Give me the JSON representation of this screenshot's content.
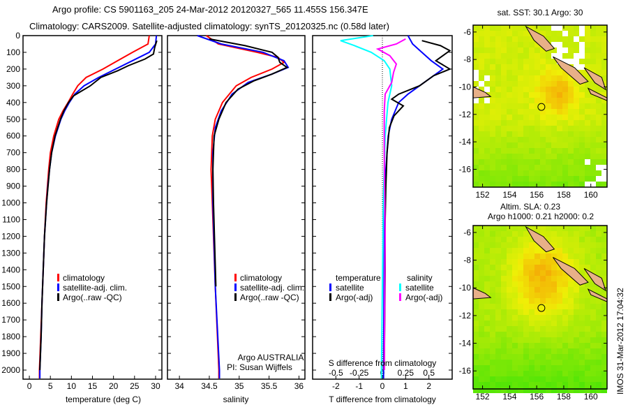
{
  "title_line1": "Argo profile: CS 5901163_205 24-Mar-2012 20120327_565 11.455S 156.347E",
  "title_line2": "Climatology: CARS2009. Satellite-adjusted climatology: synTS_20120325.nc (0.58d later)",
  "side_text": "IMOS 31-Mar-2012 17:04:32",
  "colors": {
    "climatology": "#ff0000",
    "satellite": "#0000ff",
    "argo": "#000000",
    "sal_satellite": "#00ffff",
    "sal_argo": "#ff00ff"
  },
  "chart_data": [
    {
      "type": "line",
      "name": "temperature",
      "xlabel": "temperature (deg C)",
      "xlim": [
        -1.5,
        31.5
      ],
      "ylim": [
        2050,
        0
      ],
      "xticks": [
        0,
        5,
        10,
        15,
        20,
        25,
        30
      ],
      "yticks": [
        0,
        100,
        200,
        300,
        400,
        500,
        600,
        700,
        800,
        900,
        1000,
        1100,
        1200,
        1300,
        1400,
        1500,
        1600,
        1700,
        1800,
        1900,
        2000
      ],
      "legend": [
        "climatology",
        "satellite-adj. clim.",
        "Argo(..raw -QC)"
      ],
      "series": [
        {
          "name": "climatology",
          "color": "#ff0000",
          "points": [
            [
              0,
              28.5
            ],
            [
              50,
              28.2
            ],
            [
              100,
              24.5
            ],
            [
              150,
              21
            ],
            [
              200,
              17.5
            ],
            [
              250,
              13.5
            ],
            [
              300,
              11.5
            ],
            [
              350,
              10.3
            ],
            [
              400,
              9.2
            ],
            [
              450,
              8
            ],
            [
              500,
              7
            ],
            [
              600,
              5.8
            ],
            [
              700,
              5
            ],
            [
              800,
              4.6
            ],
            [
              900,
              4.3
            ],
            [
              1000,
              4
            ],
            [
              1200,
              3.6
            ],
            [
              1400,
              3.3
            ],
            [
              1600,
              3
            ],
            [
              1800,
              2.7
            ],
            [
              2000,
              2.4
            ],
            [
              2050,
              2.4
            ]
          ]
        },
        {
          "name": "satellite",
          "color": "#0000ff",
          "points": [
            [
              0,
              30.2
            ],
            [
              50,
              30
            ],
            [
              100,
              28.5
            ],
            [
              150,
              24.5
            ],
            [
              200,
              20.5
            ],
            [
              250,
              16.5
            ],
            [
              300,
              13
            ],
            [
              350,
              10.8
            ],
            [
              400,
              9.5
            ],
            [
              450,
              8.4
            ],
            [
              500,
              7.5
            ],
            [
              600,
              6.2
            ],
            [
              700,
              5.3
            ],
            [
              800,
              4.8
            ],
            [
              900,
              4.4
            ],
            [
              1000,
              4.1
            ],
            [
              1200,
              3.6
            ],
            [
              1400,
              3.3
            ],
            [
              1600,
              3
            ],
            [
              1800,
              2.8
            ],
            [
              2000,
              2.5
            ],
            [
              2050,
              2.5
            ]
          ]
        },
        {
          "name": "argo",
          "color": "#000000",
          "points": [
            [
              30,
              30.3
            ],
            [
              70,
              29.8
            ],
            [
              110,
              29.5
            ],
            [
              140,
              27.5
            ],
            [
              180,
              23.5
            ],
            [
              210,
              21
            ],
            [
              250,
              17
            ],
            [
              300,
              14.5
            ],
            [
              330,
              12.5
            ],
            [
              360,
              10.5
            ],
            [
              400,
              9.3
            ],
            [
              450,
              8.2
            ],
            [
              500,
              7.4
            ],
            [
              600,
              6.1
            ],
            [
              700,
              5.3
            ],
            [
              800,
              4.8
            ],
            [
              1000,
              4.1
            ],
            [
              1200,
              3.6
            ],
            [
              1400,
              3.3
            ],
            [
              1600,
              3
            ],
            [
              1800,
              2.8
            ],
            [
              2000,
              2.5
            ]
          ]
        }
      ]
    },
    {
      "type": "line",
      "name": "salinity",
      "xlabel": "salinity",
      "xlim": [
        33.8,
        36.1
      ],
      "ylim": [
        2050,
        0
      ],
      "xticks": [
        34,
        34.5,
        35,
        35.5,
        36
      ],
      "legend": [
        "climatology",
        "satellite-adj. clim.",
        "Argo(..raw -QC)"
      ],
      "annotation": [
        "Argo AUSTRALIA",
        "PI: Susan Wijffels"
      ],
      "series": [
        {
          "name": "climatology",
          "color": "#ff0000",
          "points": [
            [
              0,
              34.45
            ],
            [
              50,
              34.65
            ],
            [
              100,
              35.3
            ],
            [
              130,
              35.65
            ],
            [
              160,
              35.75
            ],
            [
              200,
              35.55
            ],
            [
              250,
              35.2
            ],
            [
              300,
              34.95
            ],
            [
              400,
              34.72
            ],
            [
              500,
              34.6
            ],
            [
              600,
              34.55
            ],
            [
              800,
              34.53
            ],
            [
              1000,
              34.55
            ],
            [
              1500,
              34.6
            ],
            [
              2000,
              34.66
            ],
            [
              2050,
              34.66
            ]
          ]
        },
        {
          "name": "satellite",
          "color": "#0000ff",
          "points": [
            [
              0,
              34.3
            ],
            [
              50,
              34.7
            ],
            [
              100,
              35.4
            ],
            [
              150,
              35.75
            ],
            [
              190,
              35.82
            ],
            [
              230,
              35.55
            ],
            [
              280,
              35.15
            ],
            [
              350,
              34.88
            ],
            [
              450,
              34.7
            ],
            [
              550,
              34.6
            ],
            [
              700,
              34.56
            ],
            [
              1000,
              34.56
            ],
            [
              1500,
              34.6
            ],
            [
              2000,
              34.67
            ],
            [
              2050,
              34.67
            ]
          ]
        },
        {
          "name": "argo",
          "color": "#000000",
          "points": [
            [
              20,
              34.5
            ],
            [
              60,
              35.1
            ],
            [
              100,
              35.55
            ],
            [
              130,
              35.65
            ],
            [
              160,
              35.68
            ],
            [
              190,
              35.8
            ],
            [
              230,
              35.55
            ],
            [
              270,
              35.25
            ],
            [
              320,
              34.98
            ],
            [
              400,
              34.78
            ],
            [
              500,
              34.66
            ],
            [
              600,
              34.58
            ],
            [
              800,
              34.56
            ],
            [
              1000,
              34.57
            ],
            [
              1500,
              34.61
            ]
          ]
        }
      ]
    },
    {
      "type": "line",
      "name": "difference",
      "xlabel": "T difference from climatology",
      "x2label": "S difference from climatology",
      "xlim": [
        -3,
        3
      ],
      "x2lim": [
        -0.75,
        0.75
      ],
      "ylim": [
        2050,
        0
      ],
      "xticks": [
        -2,
        -1,
        0,
        1,
        2
      ],
      "x2ticks": [
        "-0.5",
        "-0.25",
        "0",
        "0.25",
        "0.5"
      ],
      "legend_t": {
        "title": "temperature",
        "items": [
          "satellite",
          "Argo(-adj)"
        ]
      },
      "legend_s": {
        "title": "salinity",
        "items": [
          "satellite",
          "Argo(-adj)"
        ]
      },
      "series": [
        {
          "name": "T satellite",
          "color": "#0000ff",
          "axis": "T",
          "points": [
            [
              0,
              1.1
            ],
            [
              50,
              1.3
            ],
            [
              100,
              1.7
            ],
            [
              150,
              2.1
            ],
            [
              200,
              2.6
            ],
            [
              240,
              2.2
            ],
            [
              300,
              1.6
            ],
            [
              350,
              1.1
            ],
            [
              400,
              0.7
            ],
            [
              500,
              0.4
            ],
            [
              600,
              0.25
            ],
            [
              800,
              0.15
            ],
            [
              1000,
              0.1
            ],
            [
              1500,
              0.07
            ],
            [
              2000,
              0.05
            ],
            [
              2050,
              0.05
            ]
          ]
        },
        {
          "name": "T argo",
          "color": "#000000",
          "axis": "T",
          "points": [
            [
              30,
              1.7
            ],
            [
              60,
              2.5
            ],
            [
              90,
              2.9
            ],
            [
              110,
              2.7
            ],
            [
              150,
              2.3
            ],
            [
              200,
              2.9
            ],
            [
              240,
              2.2
            ],
            [
              300,
              1.6
            ],
            [
              350,
              0.7
            ],
            [
              380,
              0.4
            ],
            [
              420,
              0.9
            ],
            [
              480,
              0.5
            ],
            [
              550,
              0.3
            ],
            [
              700,
              0.2
            ],
            [
              900,
              0.15
            ],
            [
              1100,
              0.12
            ],
            [
              1400,
              0.12
            ],
            [
              1700,
              0.1
            ],
            [
              2000,
              0.08
            ]
          ]
        },
        {
          "name": "S satellite",
          "color": "#00ffff",
          "axis": "S",
          "points": [
            [
              0,
              -0.1
            ],
            [
              30,
              -0.45
            ],
            [
              60,
              -0.3
            ],
            [
              100,
              -0.12
            ],
            [
              150,
              0.02
            ],
            [
              200,
              0.08
            ],
            [
              300,
              0.1
            ],
            [
              400,
              0.06
            ],
            [
              600,
              0.03
            ],
            [
              1000,
              0.01
            ],
            [
              2000,
              -0.01
            ],
            [
              2050,
              -0.01
            ]
          ]
        },
        {
          "name": "S argo",
          "color": "#ff00ff",
          "axis": "S",
          "points": [
            [
              20,
              0.25
            ],
            [
              50,
              0.15
            ],
            [
              80,
              -0.05
            ],
            [
              120,
              0.08
            ],
            [
              170,
              0.15
            ],
            [
              220,
              0.12
            ],
            [
              280,
              0.1
            ],
            [
              350,
              0.03
            ],
            [
              450,
              0.02
            ],
            [
              700,
              0.02
            ],
            [
              1200,
              0.03
            ],
            [
              2000,
              0.02
            ]
          ]
        }
      ]
    },
    {
      "type": "heatmap",
      "name": "sst-map",
      "title": "sat. SST: 30.1 Argo: 30",
      "xticks": [
        152,
        154,
        156,
        158,
        160
      ],
      "yticks": [
        -6,
        -8,
        -10,
        -12,
        -14,
        -16
      ],
      "xlim": [
        151.3,
        161.2
      ],
      "ylim": [
        -17.3,
        -5.5
      ],
      "float_position": [
        156.347,
        -11.455
      ]
    },
    {
      "type": "heatmap",
      "name": "sla-map",
      "title_line1": "Altim. SLA: 0.23",
      "title_line2": "Argo h1000: 0.21 h2000: 0.2",
      "xticks": [
        152,
        154,
        156,
        158,
        160
      ],
      "yticks": [
        -6,
        -8,
        -10,
        -12,
        -14,
        -16
      ],
      "xlim": [
        151.3,
        161.2
      ],
      "ylim": [
        -17.3,
        -5.5
      ],
      "float_position": [
        156.347,
        -11.455
      ]
    }
  ]
}
